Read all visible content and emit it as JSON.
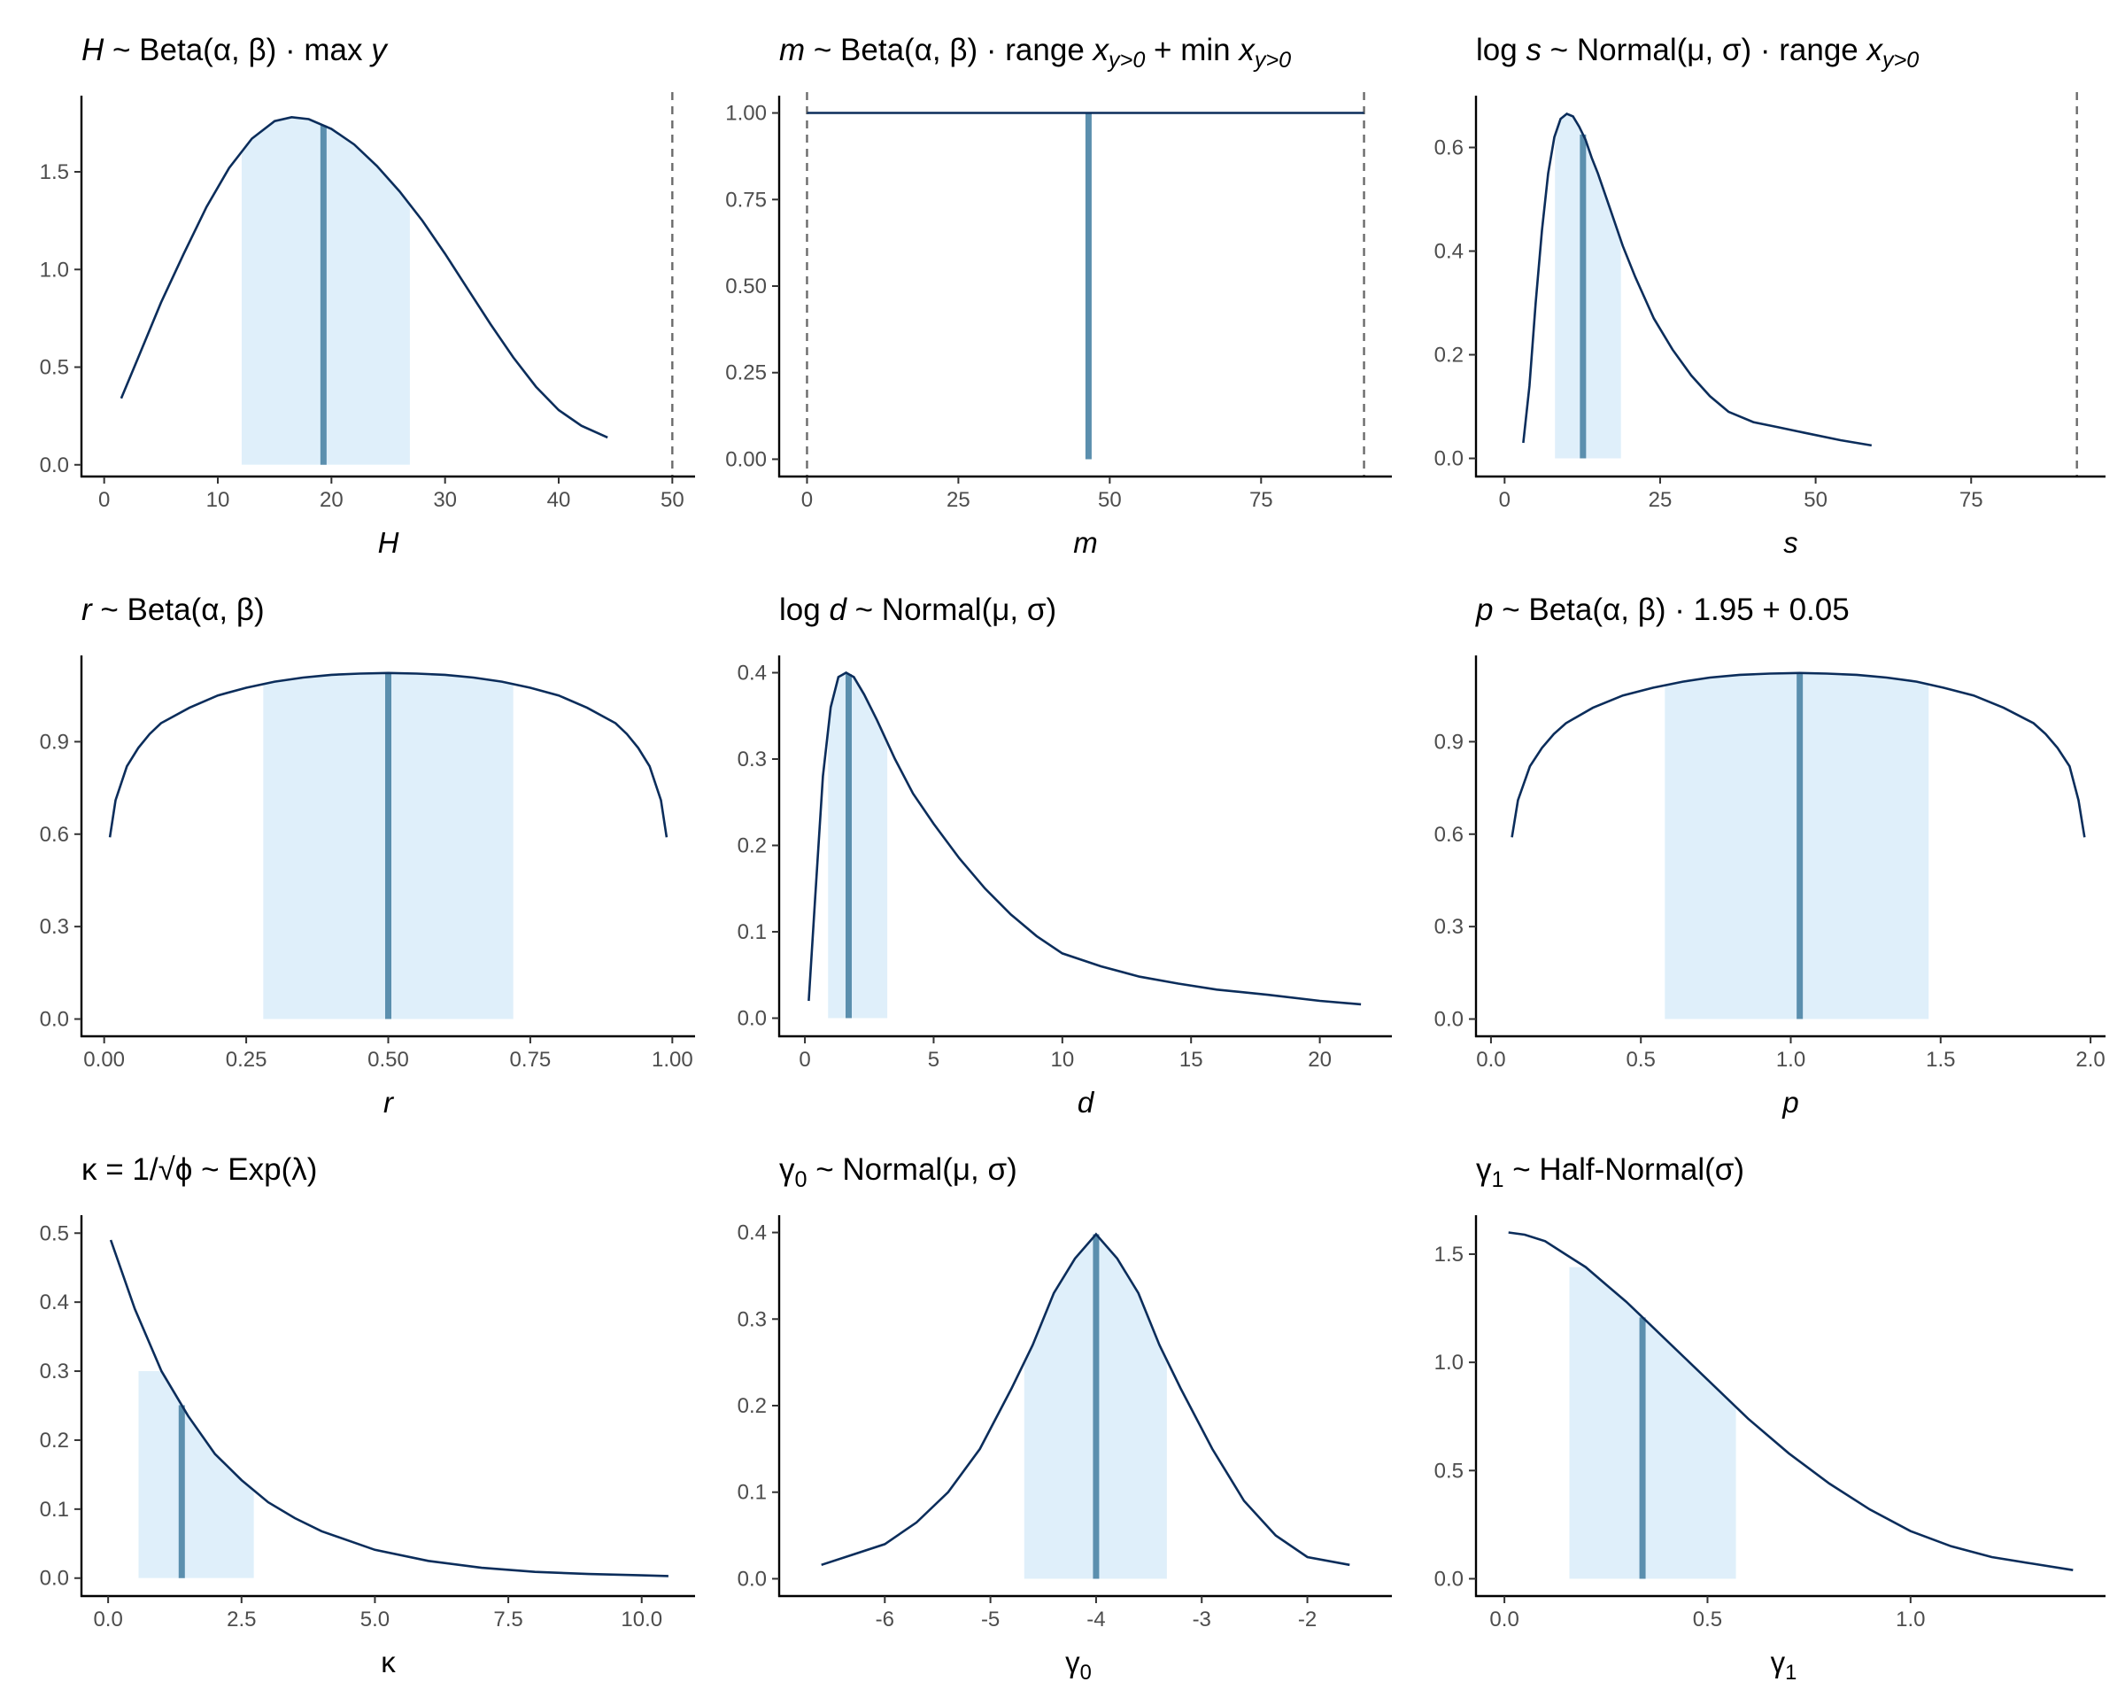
{
  "chart_data": [
    {
      "type": "line",
      "title": "H ~ Beta(α, β) · max y",
      "title_parts": [
        {
          "t": "H",
          "i": true
        },
        {
          "t": " ~ Beta(α, β) · max "
        },
        {
          "t": "y",
          "i": true
        }
      ],
      "xlabel": "H",
      "xlabel_italic": true,
      "xlim": [
        -2,
        52
      ],
      "ylim": [
        -0.06,
        1.89
      ],
      "xticks": [
        0,
        10,
        20,
        30,
        40,
        50
      ],
      "xtick_labels": [
        "0",
        "10",
        "20",
        "30",
        "40",
        "50"
      ],
      "yticks": [
        0,
        0.5,
        1,
        1.5
      ],
      "ytick_labels": [
        "0.0",
        "0.5",
        "1.0",
        "1.5"
      ],
      "x": [
        1.5,
        3,
        5,
        7,
        9,
        11,
        13,
        15,
        16.5,
        18,
        20,
        22,
        24,
        26,
        28,
        30,
        32,
        34,
        36,
        38,
        40,
        42,
        44.3
      ],
      "y": [
        0.34,
        0.55,
        0.83,
        1.08,
        1.32,
        1.52,
        1.67,
        1.76,
        1.78,
        1.77,
        1.72,
        1.64,
        1.53,
        1.4,
        1.25,
        1.08,
        0.9,
        0.72,
        0.55,
        0.4,
        0.28,
        0.2,
        0.14
      ],
      "interval": [
        12.1,
        26.9
      ],
      "central": 19.3,
      "reference_lines": [
        50
      ]
    },
    {
      "type": "line",
      "title": "m ~ Beta(α, β) · range x_{y>0} + min x_{y>0}",
      "title_parts": [
        {
          "t": "m",
          "i": true
        },
        {
          "t": " ~ Beta(α, β) · range "
        },
        {
          "t": "x",
          "i": true
        },
        {
          "t": "y>0",
          "i": true,
          "sub": true
        },
        {
          "t": " + min "
        },
        {
          "t": "x",
          "i": true
        },
        {
          "t": "y>0",
          "i": true,
          "sub": true
        }
      ],
      "xlabel": "m",
      "xlabel_italic": true,
      "xlim": [
        -4.6,
        96.6
      ],
      "ylim": [
        -0.05,
        1.05
      ],
      "xticks": [
        0,
        25,
        50,
        75
      ],
      "xtick_labels": [
        "0",
        "25",
        "50",
        "75"
      ],
      "yticks": [
        0,
        0.25,
        0.5,
        0.75,
        1
      ],
      "ytick_labels": [
        "0.00",
        "0.25",
        "0.50",
        "0.75",
        "1.00"
      ],
      "x": [
        0,
        92
      ],
      "y": [
        1,
        1
      ],
      "interval": [
        23.1,
        69
      ],
      "central": 46.5,
      "reference_lines": [
        0,
        92
      ]
    },
    {
      "type": "line",
      "title": "log s ~ Normal(μ, σ) · range x_{y>0}",
      "title_parts": [
        {
          "t": "log "
        },
        {
          "t": "s",
          "i": true
        },
        {
          "t": " ~ Normal(μ, σ) · range "
        },
        {
          "t": "x",
          "i": true
        },
        {
          "t": "y>0",
          "i": true,
          "sub": true
        }
      ],
      "xlabel": "s",
      "xlabel_italic": true,
      "xlim": [
        -4.6,
        96.6
      ],
      "ylim": [
        -0.035,
        0.7
      ],
      "xticks": [
        0,
        25,
        50,
        75
      ],
      "xtick_labels": [
        "0",
        "25",
        "50",
        "75"
      ],
      "yticks": [
        0,
        0.2,
        0.4,
        0.6
      ],
      "ytick_labels": [
        "0.0",
        "0.2",
        "0.4",
        "0.6"
      ],
      "x": [
        3,
        4,
        5,
        6,
        7,
        8,
        9,
        10,
        11,
        12,
        13,
        14,
        15,
        17,
        19,
        21,
        24,
        27,
        30,
        33,
        36,
        40,
        44,
        48,
        54,
        59
      ],
      "y": [
        0.03,
        0.14,
        0.3,
        0.44,
        0.55,
        0.62,
        0.655,
        0.665,
        0.66,
        0.64,
        0.615,
        0.58,
        0.55,
        0.48,
        0.41,
        0.35,
        0.27,
        0.21,
        0.16,
        0.12,
        0.09,
        0.07,
        0.06,
        0.05,
        0.035,
        0.025
      ],
      "interval": [
        8.1,
        18.7
      ],
      "central": 12.6,
      "reference_lines": [
        92
      ]
    },
    {
      "type": "line",
      "title": "r ~ Beta(α, β)",
      "title_parts": [
        {
          "t": "r",
          "i": true
        },
        {
          "t": " ~ Beta(α, β)"
        }
      ],
      "xlabel": "r",
      "xlabel_italic": true,
      "xlim": [
        -0.04,
        1.04
      ],
      "ylim": [
        -0.056,
        1.18
      ],
      "xticks": [
        0,
        0.25,
        0.5,
        0.75,
        1
      ],
      "xtick_labels": [
        "0.00",
        "0.25",
        "0.50",
        "0.75",
        "1.00"
      ],
      "yticks": [
        0,
        0.3,
        0.6,
        0.9
      ],
      "ytick_labels": [
        "0.0",
        "0.3",
        "0.6",
        "0.9"
      ],
      "x": [
        0.01,
        0.02,
        0.04,
        0.06,
        0.08,
        0.1,
        0.15,
        0.2,
        0.25,
        0.3,
        0.35,
        0.4,
        0.45,
        0.5,
        0.55,
        0.6,
        0.65,
        0.7,
        0.75,
        0.8,
        0.85,
        0.9,
        0.92,
        0.94,
        0.96,
        0.98,
        0.99
      ],
      "y": [
        0.59,
        0.71,
        0.82,
        0.88,
        0.925,
        0.96,
        1.01,
        1.05,
        1.075,
        1.095,
        1.108,
        1.117,
        1.121,
        1.123,
        1.121,
        1.117,
        1.108,
        1.095,
        1.075,
        1.05,
        1.01,
        0.96,
        0.925,
        0.88,
        0.82,
        0.71,
        0.59
      ],
      "interval": [
        0.28,
        0.72
      ],
      "central": 0.5
    },
    {
      "type": "line",
      "title": "log d ~ Normal(μ, σ)",
      "title_parts": [
        {
          "t": "log "
        },
        {
          "t": "d",
          "i": true
        },
        {
          "t": " ~ Normal(μ, σ)"
        }
      ],
      "xlabel": "d",
      "xlabel_italic": true,
      "xlim": [
        -1,
        22.8
      ],
      "ylim": [
        -0.021,
        0.42
      ],
      "xticks": [
        0,
        5,
        10,
        15,
        20
      ],
      "xtick_labels": [
        "0",
        "5",
        "10",
        "15",
        "20"
      ],
      "yticks": [
        0,
        0.1,
        0.2,
        0.3,
        0.4
      ],
      "ytick_labels": [
        "0.0",
        "0.1",
        "0.2",
        "0.3",
        "0.4"
      ],
      "x": [
        0.15,
        0.4,
        0.7,
        1,
        1.3,
        1.6,
        1.9,
        2.3,
        2.8,
        3.5,
        4.2,
        5,
        6,
        7,
        8,
        9,
        10,
        11.5,
        13,
        14.5,
        16,
        18,
        20,
        21.6
      ],
      "y": [
        0.02,
        0.14,
        0.28,
        0.36,
        0.395,
        0.4,
        0.395,
        0.375,
        0.345,
        0.3,
        0.26,
        0.225,
        0.185,
        0.15,
        0.12,
        0.095,
        0.075,
        0.06,
        0.048,
        0.04,
        0.033,
        0.027,
        0.02,
        0.016
      ],
      "interval": [
        0.9,
        3.2
      ],
      "central": 1.7
    },
    {
      "type": "line",
      "title": "p ~ Beta(α, β) · 1.95 + 0.05",
      "title_parts": [
        {
          "t": "p",
          "i": true
        },
        {
          "t": " ~ Beta(α, β) · 1.95 + 0.05"
        }
      ],
      "xlabel": "p",
      "xlabel_italic": true,
      "xlim": [
        -0.05,
        2.05
      ],
      "ylim": [
        -0.056,
        1.18
      ],
      "xticks": [
        0,
        0.5,
        1,
        1.5,
        2
      ],
      "xtick_labels": [
        "0.0",
        "0.5",
        "1.0",
        "1.5",
        "2.0"
      ],
      "yticks": [
        0,
        0.3,
        0.6,
        0.9
      ],
      "ytick_labels": [
        "0.0",
        "0.3",
        "0.6",
        "0.9"
      ],
      "x": [
        0.07,
        0.09,
        0.13,
        0.17,
        0.21,
        0.25,
        0.34,
        0.44,
        0.54,
        0.64,
        0.73,
        0.83,
        0.93,
        1.03,
        1.12,
        1.22,
        1.32,
        1.42,
        1.51,
        1.61,
        1.71,
        1.81,
        1.85,
        1.89,
        1.93,
        1.96,
        1.98
      ],
      "y": [
        0.59,
        0.71,
        0.82,
        0.88,
        0.925,
        0.96,
        1.01,
        1.05,
        1.075,
        1.095,
        1.108,
        1.117,
        1.121,
        1.123,
        1.121,
        1.117,
        1.108,
        1.095,
        1.075,
        1.05,
        1.01,
        0.96,
        0.925,
        0.88,
        0.82,
        0.71,
        0.59
      ],
      "interval": [
        0.58,
        1.46
      ],
      "central": 1.03
    },
    {
      "type": "line",
      "title": "κ = 1/√φ ~ Exp(λ)",
      "title_parts": [
        {
          "t": "κ = 1/√ϕ ~ Exp(λ)"
        }
      ],
      "xlabel": "κ",
      "xlabel_italic": false,
      "xlim": [
        -0.5,
        11
      ],
      "ylim": [
        -0.026,
        0.526
      ],
      "xticks": [
        0,
        2.5,
        5,
        7.5,
        10
      ],
      "xtick_labels": [
        "0.0",
        "2.5",
        "5.0",
        "7.5",
        "10.0"
      ],
      "yticks": [
        0,
        0.1,
        0.2,
        0.3,
        0.4,
        0.5
      ],
      "ytick_labels": [
        "0.0",
        "0.1",
        "0.2",
        "0.3",
        "0.4",
        "0.5"
      ],
      "x": [
        0.05,
        0.5,
        1,
        1.5,
        2,
        2.5,
        3,
        3.5,
        4,
        5,
        6,
        7,
        8,
        9,
        10,
        10.5
      ],
      "y": [
        0.49,
        0.39,
        0.3,
        0.235,
        0.18,
        0.142,
        0.11,
        0.087,
        0.068,
        0.041,
        0.025,
        0.015,
        0.009,
        0.006,
        0.004,
        0.003
      ],
      "interval": [
        0.57,
        2.73
      ],
      "central": 1.38
    },
    {
      "type": "line",
      "title": "γ₀ ~ Normal(μ, σ)",
      "title_parts": [
        {
          "t": "γ"
        },
        {
          "t": "0",
          "sub": true
        },
        {
          "t": " ~ Normal(μ, σ)"
        }
      ],
      "xlabel": "γ₀",
      "xlabel_italic": false,
      "xlabel_parts": [
        {
          "t": "γ"
        },
        {
          "t": "0",
          "sub": true
        }
      ],
      "xlim": [
        -7,
        -1.2
      ],
      "ylim": [
        -0.02,
        0.42
      ],
      "xticks": [
        -6,
        -5,
        -4,
        -3,
        -2
      ],
      "xtick_labels": [
        "-6",
        "-5",
        "-4",
        "-3",
        "-2"
      ],
      "yticks": [
        0,
        0.1,
        0.2,
        0.3,
        0.4
      ],
      "ytick_labels": [
        "0.0",
        "0.1",
        "0.2",
        "0.3",
        "0.4"
      ],
      "x": [
        -6.6,
        -6.3,
        -6,
        -5.7,
        -5.4,
        -5.1,
        -4.8,
        -4.6,
        -4.4,
        -4.2,
        -4,
        -3.8,
        -3.6,
        -3.4,
        -3.2,
        -2.9,
        -2.6,
        -2.3,
        -2,
        -1.6
      ],
      "y": [
        0.016,
        0.028,
        0.04,
        0.065,
        0.1,
        0.15,
        0.22,
        0.27,
        0.33,
        0.37,
        0.398,
        0.37,
        0.33,
        0.27,
        0.22,
        0.15,
        0.09,
        0.05,
        0.025,
        0.016
      ],
      "interval": [
        -4.68,
        -3.33
      ],
      "central": -4
    },
    {
      "type": "line",
      "title": "γ₁ ~ Half-Normal(σ)",
      "title_parts": [
        {
          "t": "γ"
        },
        {
          "t": "1",
          "sub": true
        },
        {
          "t": " ~ Half-Normal(σ)"
        }
      ],
      "xlabel": "γ₁",
      "xlabel_italic": false,
      "xlabel_parts": [
        {
          "t": "γ"
        },
        {
          "t": "1",
          "sub": true
        }
      ],
      "xlim": [
        -0.07,
        1.48
      ],
      "ylim": [
        -0.08,
        1.68
      ],
      "xticks": [
        0,
        0.5,
        1
      ],
      "xtick_labels": [
        "0.0",
        "0.5",
        "1.0"
      ],
      "yticks": [
        0,
        0.5,
        1,
        1.5
      ],
      "ytick_labels": [
        "0.0",
        "0.5",
        "1.0",
        "1.5"
      ],
      "x": [
        0.01,
        0.05,
        0.1,
        0.15,
        0.2,
        0.25,
        0.3,
        0.35,
        0.4,
        0.5,
        0.6,
        0.7,
        0.8,
        0.9,
        1,
        1.1,
        1.2,
        1.3,
        1.4
      ],
      "y": [
        1.6,
        1.59,
        1.56,
        1.5,
        1.44,
        1.36,
        1.28,
        1.19,
        1.1,
        0.92,
        0.74,
        0.58,
        0.44,
        0.32,
        0.22,
        0.15,
        0.1,
        0.07,
        0.04
      ],
      "interval": [
        0.16,
        0.57
      ],
      "central": 0.34
    }
  ]
}
